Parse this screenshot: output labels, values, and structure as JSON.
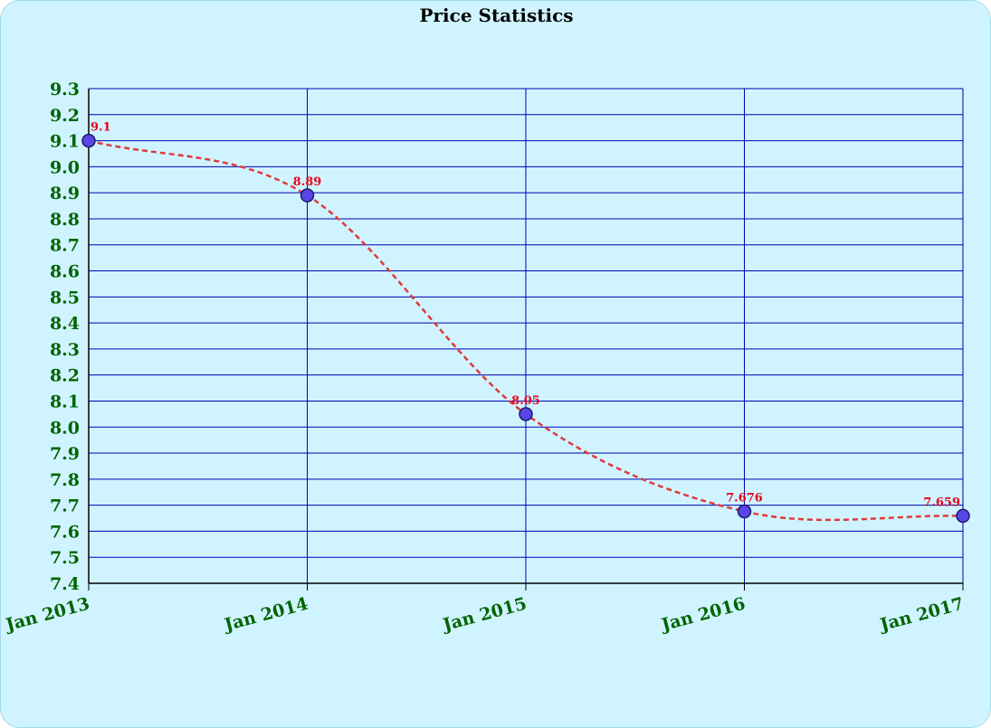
{
  "chart_data": {
    "type": "line",
    "title": "Price Statistics",
    "xlabel": "",
    "ylabel": "",
    "categories": [
      "Jan 2013",
      "Jan 2014",
      "Jan 2015",
      "Jan 2016",
      "Jan 2017"
    ],
    "series": [
      {
        "values": [
          9.1,
          8.89,
          8.05,
          7.676,
          7.659
        ]
      }
    ],
    "data_labels": [
      "9.1",
      "8.89",
      "8.05",
      "7.676",
      "7.659"
    ],
    "ylim": [
      7.4,
      9.3
    ],
    "y_ticks": [
      "7.4",
      "7.5",
      "7.6",
      "7.7",
      "7.8",
      "7.9",
      "8.0",
      "8.1",
      "8.2",
      "8.3",
      "8.4",
      "8.5",
      "8.6",
      "8.7",
      "8.8",
      "8.9",
      "9.0",
      "9.1",
      "9.2",
      "9.3"
    ],
    "grid": true,
    "line_style": "dashed",
    "smooth": true,
    "colors": {
      "background": "#d0f4ff",
      "grid": "#0000b0",
      "line": "#e03a3a",
      "marker_fill": "#5a46e6",
      "marker_stroke": "#1a1a6e",
      "tick_text": "#006400",
      "data_label": "#e8001c"
    }
  }
}
